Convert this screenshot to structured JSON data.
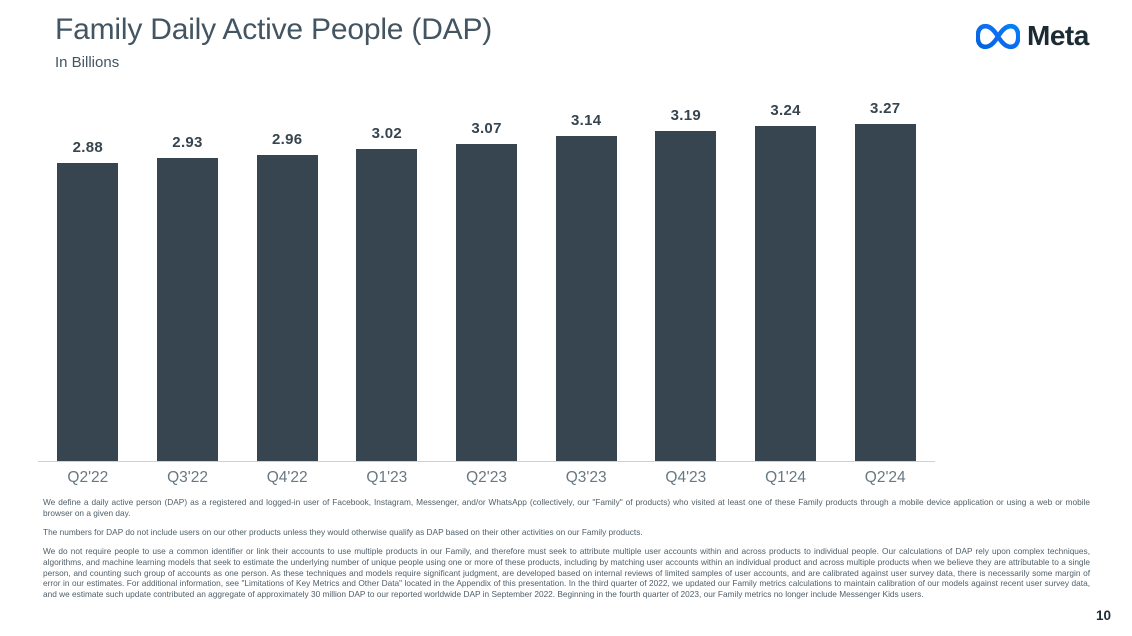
{
  "header": {
    "title": "Family Daily Active People (DAP)",
    "subtitle": "In Billions",
    "brand_wordmark": "Meta"
  },
  "chart_data": {
    "type": "bar",
    "title": "Family Daily Active People (DAP)",
    "unit_label": "In Billions",
    "categories": [
      "Q2'22",
      "Q3'22",
      "Q4'22",
      "Q1'23",
      "Q2'23",
      "Q3'23",
      "Q4'23",
      "Q1'24",
      "Q2'24"
    ],
    "values": [
      2.88,
      2.93,
      2.96,
      3.02,
      3.07,
      3.14,
      3.19,
      3.24,
      3.27
    ],
    "data_labels": [
      "2.88",
      "2.93",
      "2.96",
      "3.02",
      "3.07",
      "3.14",
      "3.19",
      "3.24",
      "3.27"
    ],
    "ylim": [
      0,
      3.49
    ],
    "grid": false,
    "legend": "none",
    "bar_color": "#36454f",
    "value_label_color": "#36454f",
    "category_label_color": "#687882",
    "axis_line_color": "#cdd2d5"
  },
  "footnotes": {
    "paragraph_1": "We define a daily active person (DAP) as a registered and logged-in user of Facebook, Instagram, Messenger, and/or WhatsApp (collectively, our \"Family\" of products) who visited at least one of these Family products through a mobile device application or using a web or mobile browser on a given day.",
    "paragraph_2": "The numbers for DAP do not include users on our other products unless they would otherwise qualify as DAP based on their other activities on our Family products.",
    "paragraph_3": "We do not require people to use a common identifier or link their accounts to use multiple products in our Family, and therefore must seek to attribute multiple user accounts within and across products to individual people. Our calculations of DAP rely upon complex techniques, algorithms, and machine learning models that seek to estimate the underlying number of unique people using one or more of these products, including by matching user accounts within an individual product and across multiple products when we believe they are attributable to a single person, and counting such group of accounts as one person. As these techniques and models require significant judgment, are developed based on internal reviews of limited samples of user accounts, and are calibrated against user survey data, there is necessarily some margin of error in our estimates. For additional information, see \"Limitations of Key Metrics and Other Data\" located in the Appendix of this presentation. In the third quarter of 2022, we updated our Family metrics calculations to maintain calibration of our models against recent user survey data, and we estimate such update contributed an aggregate of approximately 30 million DAP to our reported worldwide DAP in September 2022. Beginning in the fourth quarter of 2023, our Family metrics no longer include Messenger Kids users.",
    "logo_colors": {
      "gradient_start": "#0064e0",
      "gradient_end": "#0082fb",
      "wordmark": "#1c2b33"
    }
  },
  "footer": {
    "page_number": "10"
  }
}
